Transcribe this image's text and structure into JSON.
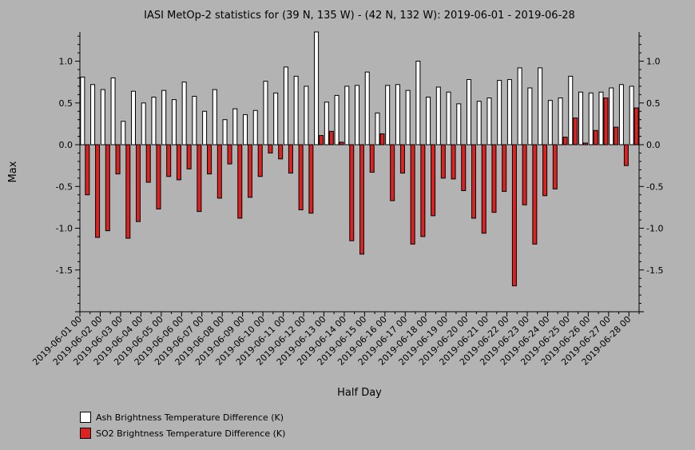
{
  "chart_data": {
    "type": "bar",
    "title": "IASI MetOp-2 statistics for (39 N, 135 W) - (42 N, 132 W): 2019-06-01 - 2019-06-28",
    "xlabel": "Half Day",
    "ylabel": "Max",
    "ylim": [
      -2.0,
      1.35
    ],
    "yticks": [
      -1.5,
      -1.0,
      -0.5,
      0.0,
      0.5,
      1.0
    ],
    "ytick_labels": [
      "-1.5",
      "-1.0",
      "-0.5",
      "0.0",
      "0.5",
      "1.0"
    ],
    "xtick_labels": [
      "2019-06-01 00",
      "2019-06-02 00",
      "2019-06-03 00",
      "2019-06-04 00",
      "2019-06-05 00",
      "2019-06-06 00",
      "2019-06-07 00",
      "2019-06-08 00",
      "2019-06-09 00",
      "2019-06-10 00",
      "2019-06-11 00",
      "2019-06-12 00",
      "2019-06-13 00",
      "2019-06-14 00",
      "2019-06-15 00",
      "2019-06-16 00",
      "2019-06-17 00",
      "2019-06-18 00",
      "2019-06-19 00",
      "2019-06-20 00",
      "2019-06-21 00",
      "2019-06-22 00",
      "2019-06-23 00",
      "2019-06-24 00",
      "2019-06-25 00",
      "2019-06-26 00",
      "2019-06-27 00",
      "2019-06-28 00"
    ],
    "series": [
      {
        "name": "Ash Brightness Temperature Difference (K)",
        "color": "#ffffff",
        "values": [
          0.81,
          0.72,
          0.66,
          0.8,
          0.28,
          0.64,
          0.5,
          0.57,
          0.65,
          0.54,
          0.75,
          0.58,
          0.4,
          0.66,
          0.3,
          0.43,
          0.36,
          0.41,
          0.76,
          0.62,
          0.93,
          0.82,
          0.7,
          1.35,
          0.51,
          0.59,
          0.7,
          0.71,
          0.87,
          0.38,
          0.71,
          0.72,
          0.65,
          1.0,
          0.57,
          0.69,
          0.63,
          0.49,
          0.78,
          0.52,
          0.56,
          0.77,
          0.78,
          0.92,
          0.68,
          0.92,
          0.53,
          0.56,
          0.82,
          0.63,
          0.62,
          0.63,
          0.68,
          0.72,
          0.7
        ]
      },
      {
        "name": "SO2 Brightness Temperature Difference (K)",
        "color": "#dd2222",
        "values": [
          -0.6,
          -1.11,
          -1.03,
          -0.35,
          -1.12,
          -0.92,
          -0.45,
          -0.77,
          -0.38,
          -0.42,
          -0.29,
          -0.8,
          -0.35,
          -0.64,
          -0.23,
          -0.88,
          -0.63,
          -0.38,
          -0.1,
          -0.17,
          -0.34,
          -0.78,
          -0.82,
          0.11,
          0.16,
          0.03,
          -1.15,
          -1.31,
          -0.33,
          0.13,
          -0.67,
          -0.34,
          -1.19,
          -1.1,
          -0.85,
          -0.4,
          -0.41,
          -0.55,
          -0.88,
          -1.06,
          -0.81,
          -0.56,
          -1.69,
          -0.72,
          -1.19,
          -0.61,
          -0.53,
          0.09,
          0.32,
          0.02,
          0.17,
          0.56,
          0.21,
          -0.25,
          0.44
        ]
      }
    ],
    "legend_position": "bottom-left",
    "background": "#b3b3b3"
  }
}
